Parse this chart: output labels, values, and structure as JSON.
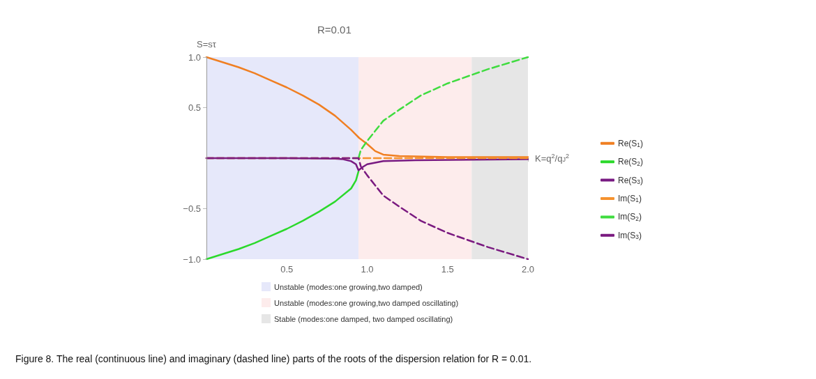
{
  "chart_data": {
    "type": "line",
    "title": "R=0.01",
    "xlabel": "K=q$^{2}$/q$_{J}$$^{2}$",
    "ylabel": "S=sτ",
    "xlim": [
      0,
      2
    ],
    "ylim": [
      -1,
      1
    ],
    "xticks": [
      {
        "value": 0.5,
        "label": "0.5"
      },
      {
        "value": 1,
        "label": "1.0"
      },
      {
        "value": 1.5,
        "label": "1.5"
      },
      {
        "value": 2,
        "label": "2.0"
      }
    ],
    "yticks": [
      {
        "value": -1,
        "label": "−1.0"
      },
      {
        "value": -0.5,
        "label": "−0.5"
      },
      {
        "value": 0.5,
        "label": "0.5"
      },
      {
        "value": 1,
        "label": "1.0"
      }
    ],
    "grid": false,
    "legend": "right",
    "marker": "none",
    "bands": [
      {
        "axis": "x",
        "from": 0,
        "to": 0.946,
        "label": "Unstable (modes:one growing,two damped)",
        "color": "#e6e8fa"
      },
      {
        "axis": "x",
        "from": 0.946,
        "to": 1.65,
        "label": "Unstable (modes:one growing,two damped oscillating)",
        "color": "#fdecec"
      },
      {
        "axis": "x",
        "from": 1.65,
        "to": 2,
        "label": "Stable (modes:one damped, two damped oscillating)",
        "color": "#e6e6e6"
      }
    ],
    "series": [
      {
        "name": "Re(S$_{1}$)",
        "color": "#f07f22",
        "line_style": "solid",
        "x": [
          0,
          0.1,
          0.2,
          0.3,
          0.4,
          0.5,
          0.6,
          0.7,
          0.8,
          0.9,
          0.95,
          1,
          1.05,
          1.1,
          1.2,
          1.5,
          2
        ],
        "values": [
          1,
          0.95,
          0.9,
          0.84,
          0.77,
          0.7,
          0.62,
          0.53,
          0.42,
          0.28,
          0.2,
          0.14,
          0.07,
          0.035,
          0.02,
          0.01,
          0.01
        ]
      },
      {
        "name": "Re(S$_{2}$)",
        "color": "#2bd92b",
        "line_style": "solid",
        "x": [
          0,
          0.1,
          0.2,
          0.3,
          0.4,
          0.5,
          0.6,
          0.7,
          0.8,
          0.9,
          0.93,
          0.946
        ],
        "values": [
          -1,
          -0.95,
          -0.9,
          -0.84,
          -0.77,
          -0.7,
          -0.62,
          -0.53,
          -0.43,
          -0.3,
          -0.22,
          -0.13
        ]
      },
      {
        "name": "Re(S$_{3}$)",
        "color": "#781a82",
        "line_style": "solid",
        "x": [
          0,
          0.5,
          0.8,
          0.85,
          0.9,
          0.93,
          0.946,
          0.97,
          1,
          1.1,
          1.3,
          2
        ],
        "values": [
          0,
          0,
          -0.005,
          -0.01,
          -0.03,
          -0.06,
          -0.12,
          -0.09,
          -0.06,
          -0.03,
          -0.02,
          -0.01
        ]
      },
      {
        "name": "Im(S$_{1}$)",
        "color": "#f5922e",
        "line_style": "dashed",
        "x": [
          0,
          0.5,
          1,
          1.5,
          2
        ],
        "values": [
          0,
          0,
          0,
          0,
          0
        ]
      },
      {
        "name": "Im(S$_{2}$)",
        "color": "#3fdc3f",
        "line_style": "dashed",
        "x": [
          0.946,
          0.96,
          1,
          1.1,
          1.2,
          1.333,
          1.5,
          1.75,
          2
        ],
        "values": [
          0,
          0.08,
          0.17,
          0.37,
          0.48,
          0.62,
          0.74,
          0.88,
          1
        ]
      },
      {
        "name": "Im(S$_{3}$)",
        "color": "#7a1a80",
        "line_style": "dashed",
        "x": [
          0,
          0.5,
          0.946,
          0.96,
          1,
          1.1,
          1.2,
          1.333,
          1.5,
          1.75,
          2
        ],
        "values": [
          0,
          0,
          0,
          -0.08,
          -0.17,
          -0.37,
          -0.48,
          -0.62,
          -0.74,
          -0.88,
          -1
        ]
      }
    ],
    "annotations": [
      "Figure 8. The real (continuous line) and imaginary (dashed line) parts of the roots of the dispersion relation for R = 0.01."
    ]
  }
}
